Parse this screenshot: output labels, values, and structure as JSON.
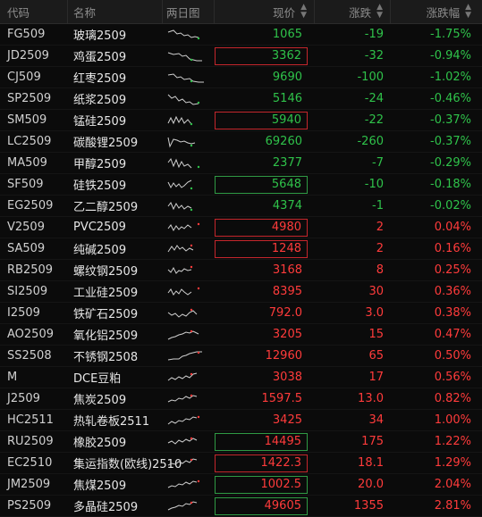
{
  "header": {
    "code": "代码",
    "name": "名称",
    "spark": "两日图",
    "price": "现价",
    "change": "涨跌",
    "pct": "涨跌幅",
    "sort_icon": "sort-icon"
  },
  "colors": {
    "up": "#ff3b3b",
    "down": "#2fc24a",
    "box_up": "#c4262c",
    "box_down": "#2f9a44"
  },
  "rows": [
    {
      "code": "FG509",
      "name": "玻璃2509",
      "price": "1065",
      "change": "-19",
      "pct": "-1.75%",
      "dir": "down",
      "box": "",
      "spark_icon": "two-day-sparkline"
    },
    {
      "code": "JD2509",
      "name": "鸡蛋2509",
      "price": "3362",
      "change": "-32",
      "pct": "-0.94%",
      "dir": "down",
      "box": "red",
      "spark_icon": "two-day-sparkline"
    },
    {
      "code": "CJ509",
      "name": "红枣2509",
      "price": "9690",
      "change": "-100",
      "pct": "-1.02%",
      "dir": "down",
      "box": "",
      "spark_icon": "two-day-sparkline"
    },
    {
      "code": "SP2509",
      "name": "纸浆2509",
      "price": "5146",
      "change": "-24",
      "pct": "-0.46%",
      "dir": "down",
      "box": "",
      "spark_icon": "two-day-sparkline"
    },
    {
      "code": "SM509",
      "name": "锰硅2509",
      "price": "5940",
      "change": "-22",
      "pct": "-0.37%",
      "dir": "down",
      "box": "red",
      "spark_icon": "two-day-sparkline"
    },
    {
      "code": "LC2509",
      "name": "碳酸锂2509",
      "price": "69260",
      "change": "-260",
      "pct": "-0.37%",
      "dir": "down",
      "box": "",
      "spark_icon": "two-day-sparkline"
    },
    {
      "code": "MA509",
      "name": "甲醇2509",
      "price": "2377",
      "change": "-7",
      "pct": "-0.29%",
      "dir": "down",
      "box": "",
      "spark_icon": "two-day-sparkline"
    },
    {
      "code": "SF509",
      "name": "硅铁2509",
      "price": "5648",
      "change": "-10",
      "pct": "-0.18%",
      "dir": "down",
      "box": "green",
      "spark_icon": "two-day-sparkline"
    },
    {
      "code": "EG2509",
      "name": "乙二醇2509",
      "price": "4374",
      "change": "-1",
      "pct": "-0.02%",
      "dir": "down",
      "box": "",
      "spark_icon": "two-day-sparkline"
    },
    {
      "code": "V2509",
      "name": "PVC2509",
      "price": "4980",
      "change": "2",
      "pct": "0.04%",
      "dir": "up",
      "box": "red",
      "spark_icon": "two-day-sparkline"
    },
    {
      "code": "SA509",
      "name": "纯碱2509",
      "price": "1248",
      "change": "2",
      "pct": "0.16%",
      "dir": "up",
      "box": "red",
      "spark_icon": "two-day-sparkline"
    },
    {
      "code": "RB2509",
      "name": "螺纹钢2509",
      "price": "3168",
      "change": "8",
      "pct": "0.25%",
      "dir": "up",
      "box": "",
      "spark_icon": "two-day-sparkline"
    },
    {
      "code": "SI2509",
      "name": "工业硅2509",
      "price": "8395",
      "change": "30",
      "pct": "0.36%",
      "dir": "up",
      "box": "",
      "spark_icon": "two-day-sparkline"
    },
    {
      "code": "I2509",
      "name": "铁矿石2509",
      "price": "792.0",
      "change": "3.0",
      "pct": "0.38%",
      "dir": "up",
      "box": "",
      "spark_icon": "two-day-sparkline"
    },
    {
      "code": "AO2509",
      "name": "氧化铝2509",
      "price": "3205",
      "change": "15",
      "pct": "0.47%",
      "dir": "up",
      "box": "",
      "spark_icon": "two-day-sparkline"
    },
    {
      "code": "SS2508",
      "name": "不锈钢2508",
      "price": "12960",
      "change": "65",
      "pct": "0.50%",
      "dir": "up",
      "box": "",
      "spark_icon": "two-day-sparkline"
    },
    {
      "code": "M",
      "name": "DCE豆粕",
      "price": "3038",
      "change": "17",
      "pct": "0.56%",
      "dir": "up",
      "box": "",
      "spark_icon": "two-day-sparkline"
    },
    {
      "code": "J2509",
      "name": "焦炭2509",
      "price": "1597.5",
      "change": "13.0",
      "pct": "0.82%",
      "dir": "up",
      "box": "",
      "spark_icon": "two-day-sparkline"
    },
    {
      "code": "HC2511",
      "name": "热轧卷板2511",
      "price": "3425",
      "change": "34",
      "pct": "1.00%",
      "dir": "up",
      "box": "",
      "spark_icon": "two-day-sparkline"
    },
    {
      "code": "RU2509",
      "name": "橡胶2509",
      "price": "14495",
      "change": "175",
      "pct": "1.22%",
      "dir": "up",
      "box": "green",
      "spark_icon": "two-day-sparkline"
    },
    {
      "code": "EC2510",
      "name": "集运指数(欧线)2510",
      "price": "1422.3",
      "change": "18.1",
      "pct": "1.29%",
      "dir": "up",
      "box": "red",
      "spark_icon": "two-day-sparkline"
    },
    {
      "code": "JM2509",
      "name": "焦煤2509",
      "price": "1002.5",
      "change": "20.0",
      "pct": "2.04%",
      "dir": "up",
      "box": "green",
      "spark_icon": "two-day-sparkline"
    },
    {
      "code": "PS2509",
      "name": "多晶硅2509",
      "price": "49605",
      "change": "1355",
      "pct": "2.81%",
      "dir": "up",
      "box": "green",
      "spark_icon": "two-day-sparkline"
    }
  ]
}
